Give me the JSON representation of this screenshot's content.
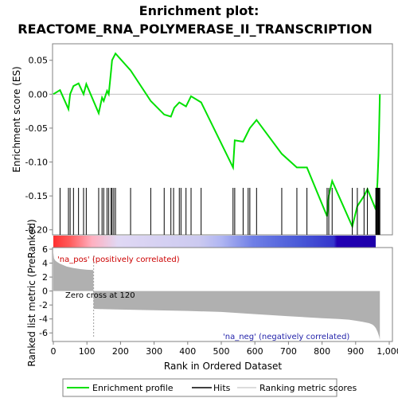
{
  "title_line1": "Enrichment plot:",
  "title_line2": "REACTOME_RNA_POLYMERASE_II_TRANSCRIPTION",
  "colors": {
    "es_line": "#00e000",
    "hits": "#000000",
    "metric_fill": "#b0b0b0",
    "pos_annot": "#cc0000",
    "neg_annot": "#2222aa"
  },
  "chart_data": [
    {
      "type": "line",
      "ylabel": "Enrichment score (ES)",
      "xlim": [
        0,
        1000
      ],
      "ylim": [
        -0.205,
        0.072
      ],
      "y_ticks": [
        0.05,
        0.0,
        -0.05,
        -0.1,
        -0.15,
        -0.2
      ],
      "y_tick_labels": [
        "0.05",
        "0.00",
        "-0.05",
        "-0.10",
        "-0.15",
        "-0.20"
      ],
      "series": [
        {
          "name": "Enrichment profile",
          "x": [
            0,
            20,
            45,
            50,
            60,
            75,
            90,
            98,
            135,
            145,
            150,
            160,
            165,
            172,
            175,
            185,
            230,
            290,
            330,
            350,
            360,
            375,
            395,
            410,
            440,
            535,
            540,
            565,
            585,
            605,
            680,
            725,
            755,
            815,
            820,
            830,
            890,
            905,
            925,
            935,
            960,
            965,
            968,
            970,
            972
          ],
          "y": [
            0.0,
            0.006,
            -0.022,
            0.0,
            0.012,
            0.016,
            0.0,
            0.015,
            -0.028,
            -0.005,
            -0.01,
            0.005,
            0.0,
            0.035,
            0.05,
            0.06,
            0.035,
            -0.01,
            -0.03,
            -0.033,
            -0.02,
            -0.012,
            -0.018,
            -0.003,
            -0.012,
            -0.108,
            -0.068,
            -0.07,
            -0.05,
            -0.038,
            -0.088,
            -0.108,
            -0.108,
            -0.18,
            -0.15,
            -0.128,
            -0.195,
            -0.165,
            -0.15,
            -0.14,
            -0.17,
            -0.13,
            -0.09,
            -0.05,
            0.0
          ]
        }
      ]
    },
    {
      "type": "scatter",
      "name": "Hits",
      "x": [
        20,
        45,
        50,
        60,
        75,
        90,
        98,
        135,
        145,
        150,
        160,
        165,
        172,
        175,
        180,
        185,
        230,
        290,
        330,
        350,
        358,
        375,
        380,
        395,
        410,
        440,
        535,
        540,
        565,
        580,
        585,
        605,
        680,
        725,
        755,
        815,
        820,
        830,
        890,
        905,
        925,
        935,
        960,
        962,
        964,
        966,
        968,
        970,
        972
      ]
    },
    {
      "type": "area",
      "ylabel": "Ranked list metric (PreRanked)",
      "xlabel": "Rank in Ordered Dataset",
      "xlim": [
        0,
        1000
      ],
      "ylim": [
        -7,
        6
      ],
      "x_ticks": [
        0,
        100,
        200,
        300,
        400,
        500,
        600,
        700,
        800,
        900,
        1000
      ],
      "x_tick_labels": [
        "0",
        "100",
        "200",
        "300",
        "400",
        "500",
        "600",
        "700",
        "800",
        "900",
        "1,000"
      ],
      "y_ticks": [
        6,
        4,
        2,
        0,
        -2,
        -4,
        -6
      ],
      "y_tick_labels": [
        "6",
        "4",
        "2",
        "0",
        "-2",
        "-4",
        "-6"
      ],
      "x": [
        0,
        2,
        5,
        10,
        20,
        40,
        60,
        80,
        100,
        119,
        120,
        121,
        150,
        200,
        300,
        400,
        500,
        600,
        700,
        800,
        850,
        880,
        900,
        920,
        940,
        950,
        955,
        960,
        965,
        970,
        972
      ],
      "y": [
        5.5,
        4.7,
        4.4,
        4.2,
        3.9,
        3.5,
        3.3,
        3.15,
        3.05,
        3.0,
        -2.5,
        -2.55,
        -2.6,
        -2.65,
        -2.75,
        -2.85,
        -3.0,
        -3.3,
        -3.6,
        -3.9,
        -4.0,
        -4.1,
        -4.25,
        -4.4,
        -4.6,
        -4.8,
        -5.0,
        -5.3,
        -5.8,
        -6.5,
        -7.0
      ],
      "annotations": {
        "pos": "'na_pos' (positively correlated)",
        "neg": "'na_neg' (negatively correlated)",
        "zero_cross": "Zero cross at 120"
      },
      "zero_cross": 120
    }
  ],
  "legend": {
    "items": [
      {
        "label": "Enrichment profile"
      },
      {
        "label": "Hits"
      },
      {
        "label": "Ranking metric scores"
      }
    ]
  }
}
